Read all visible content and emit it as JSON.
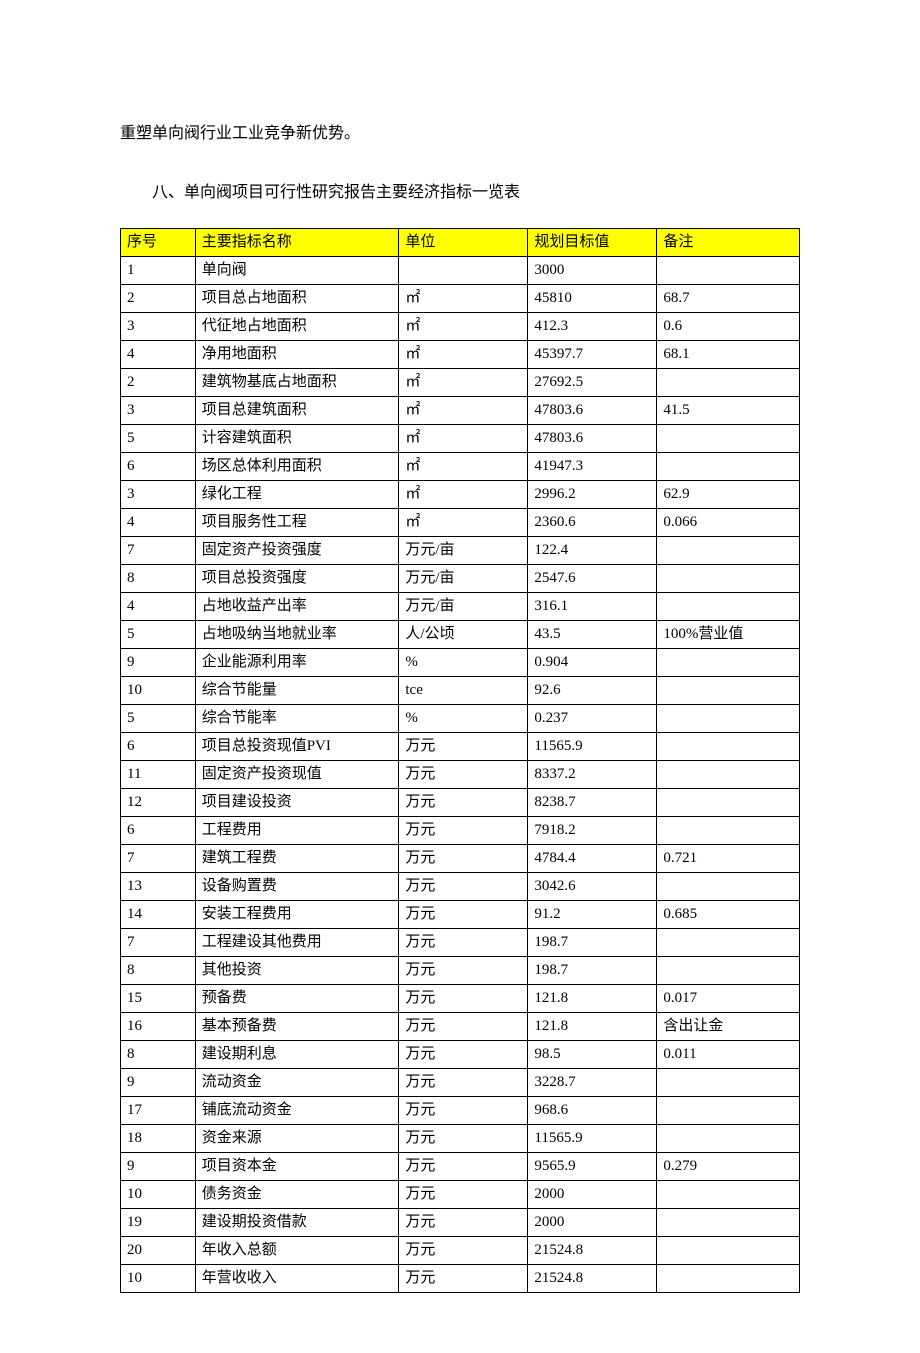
{
  "intro_text": "重塑单向阀行业工业竞争新优势。",
  "section_title": "八、单向阀项目可行性研究报告主要经济指标一览表",
  "table": {
    "header_bg": "#ffff00",
    "border_color": "#000000",
    "columns": [
      {
        "label": "序号",
        "width": "11%"
      },
      {
        "label": "主要指标名称",
        "width": "30%"
      },
      {
        "label": "单位",
        "width": "19%"
      },
      {
        "label": "规划目标值",
        "width": "19%"
      },
      {
        "label": "备注",
        "width": "21%"
      }
    ],
    "rows": [
      [
        "1",
        "单向阀",
        "",
        "3000",
        ""
      ],
      [
        "2",
        "项目总占地面积",
        "㎡",
        "45810",
        "68.7"
      ],
      [
        "3",
        "代征地占地面积",
        "㎡",
        "412.3",
        "0.6"
      ],
      [
        "4",
        "净用地面积",
        "㎡",
        "45397.7",
        "68.1"
      ],
      [
        "2",
        "建筑物基底占地面积",
        "㎡",
        "27692.5",
        ""
      ],
      [
        "3",
        "项目总建筑面积",
        "㎡",
        "47803.6",
        "41.5"
      ],
      [
        "5",
        "计容建筑面积",
        "㎡",
        "47803.6",
        ""
      ],
      [
        "6",
        "场区总体利用面积",
        "㎡",
        "41947.3",
        ""
      ],
      [
        "3",
        "绿化工程",
        "㎡",
        "2996.2",
        "62.9"
      ],
      [
        "4",
        "项目服务性工程",
        "㎡",
        "2360.6",
        "0.066"
      ],
      [
        "7",
        "固定资产投资强度",
        "万元/亩",
        "122.4",
        ""
      ],
      [
        "8",
        "项目总投资强度",
        "万元/亩",
        "2547.6",
        ""
      ],
      [
        "4",
        "占地收益产出率",
        "万元/亩",
        "316.1",
        ""
      ],
      [
        "5",
        "占地吸纳当地就业率",
        "人/公顷",
        "43.5",
        "100%营业值"
      ],
      [
        "9",
        "企业能源利用率",
        "%",
        "0.904",
        ""
      ],
      [
        "10",
        "综合节能量",
        "tce",
        "92.6",
        ""
      ],
      [
        "5",
        "综合节能率",
        "%",
        "0.237",
        ""
      ],
      [
        "6",
        "项目总投资现值PVI",
        "万元",
        "11565.9",
        ""
      ],
      [
        "11",
        "固定资产投资现值",
        "万元",
        "8337.2",
        ""
      ],
      [
        "12",
        "项目建设投资",
        "万元",
        "8238.7",
        ""
      ],
      [
        "6",
        "工程费用",
        "万元",
        "7918.2",
        ""
      ],
      [
        "7",
        "建筑工程费",
        "万元",
        "4784.4",
        "0.721"
      ],
      [
        "13",
        "设备购置费",
        "万元",
        "3042.6",
        ""
      ],
      [
        "14",
        "安装工程费用",
        "万元",
        "91.2",
        "0.685"
      ],
      [
        "7",
        "工程建设其他费用",
        "万元",
        "198.7",
        ""
      ],
      [
        "8",
        "其他投资",
        "万元",
        "198.7",
        ""
      ],
      [
        "15",
        "预备费",
        "万元",
        "121.8",
        "0.017"
      ],
      [
        "16",
        "基本预备费",
        "万元",
        "121.8",
        "含出让金"
      ],
      [
        "8",
        "建设期利息",
        "万元",
        "98.5",
        "0.011"
      ],
      [
        "9",
        "流动资金",
        "万元",
        "3228.7",
        ""
      ],
      [
        "17",
        "铺底流动资金",
        "万元",
        "968.6",
        ""
      ],
      [
        "18",
        "资金来源",
        "万元",
        "11565.9",
        ""
      ],
      [
        "9",
        "项目资本金",
        "万元",
        "9565.9",
        "0.279"
      ],
      [
        "10",
        "债务资金",
        "万元",
        "2000",
        ""
      ],
      [
        "19",
        "建设期投资借款",
        "万元",
        "2000",
        ""
      ],
      [
        "20",
        "年收入总额",
        "万元",
        "21524.8",
        ""
      ],
      [
        "10",
        "年营收收入",
        "万元",
        "21524.8",
        ""
      ]
    ]
  }
}
